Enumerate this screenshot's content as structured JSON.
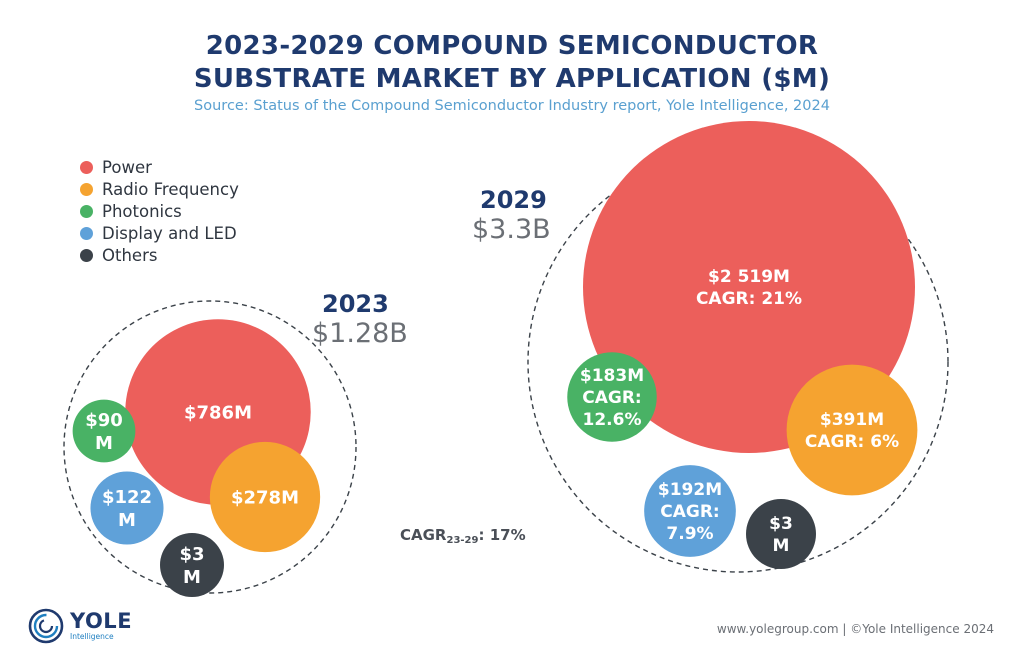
{
  "title_line1": "2023-2029 COMPOUND SEMICONDUCTOR",
  "title_line2": "SUBSTRATE MARKET BY APPLICATION ($M)",
  "subtitle": "Source: Status of the Compound Semiconductor Industry report, Yole Intelligence, 2024",
  "legend": [
    {
      "label": "Power",
      "color": "#ec5f5b"
    },
    {
      "label": "Radio Frequency",
      "color": "#f5a330"
    },
    {
      "label": "Photonics",
      "color": "#49b265"
    },
    {
      "label": "Display and LED",
      "color": "#5fa1d9"
    },
    {
      "label": "Others",
      "color": "#3b4249"
    }
  ],
  "year_2023": {
    "year": "2023",
    "total": "$1.28B"
  },
  "year_2029": {
    "year": "2029",
    "total": "$3.3B"
  },
  "cagr_overall": {
    "prefix": "CAGR",
    "sub": "23-29",
    "suffix": ": 17%"
  },
  "footer": "www.yolegroup.com | ©Yole Intelligence 2024",
  "logo": {
    "name": "YOLE",
    "sub": "Intelligence"
  },
  "chart_data": {
    "type": "bubble",
    "title": "2023-2029 COMPOUND SEMICONDUCTOR SUBSTRATE MARKET BY APPLICATION ($M)",
    "categories": [
      "Power",
      "Radio Frequency",
      "Photonics",
      "Display and LED",
      "Others"
    ],
    "series": [
      {
        "name": "2023",
        "total": "$1.28B",
        "values": [
          786,
          278,
          90,
          122,
          3
        ],
        "labels": [
          [
            "$786M"
          ],
          [
            "$278M"
          ],
          [
            "$90",
            "M"
          ],
          [
            "$122",
            "M"
          ],
          [
            "$3",
            "M"
          ]
        ],
        "cagr": [
          null,
          null,
          null,
          null,
          null
        ]
      },
      {
        "name": "2029",
        "total": "$3.3B",
        "values": [
          2519,
          391,
          183,
          192,
          3
        ],
        "labels": [
          [
            "$2 519M",
            "CAGR: 21%"
          ],
          [
            "$391M",
            "CAGR: 6%"
          ],
          [
            "$183M",
            "CAGR:",
            "12.6%"
          ],
          [
            "$192M",
            "CAGR:",
            "7.9%"
          ],
          [
            "$3",
            "M"
          ]
        ],
        "cagr": [
          "21%",
          "6%",
          "12.6%",
          "7.9%",
          null
        ]
      }
    ],
    "overall_cagr": "17%"
  }
}
